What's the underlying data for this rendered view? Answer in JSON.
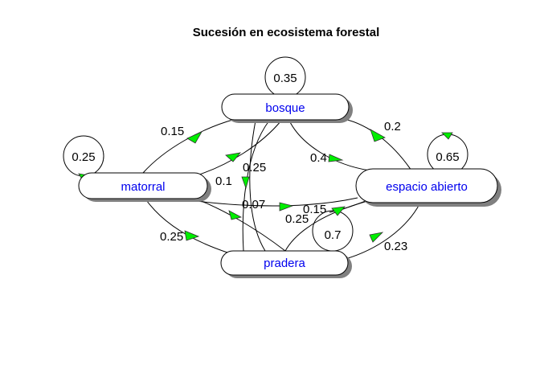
{
  "title": "Sucesión en ecosistema forestal",
  "colors": {
    "arrow_fill": "#00ee00",
    "node_label": "#0000ee",
    "edge": "#000000",
    "shadow": "#808080"
  },
  "nodes": [
    {
      "id": "bosque",
      "label": "bosque"
    },
    {
      "id": "matorral",
      "label": "matorral"
    },
    {
      "id": "espacio_abierto",
      "label": "espacio abierto"
    },
    {
      "id": "pradera",
      "label": "pradera"
    }
  ],
  "edges": [
    {
      "from": "bosque",
      "to": "bosque",
      "label": "0.35"
    },
    {
      "from": "matorral",
      "to": "bosque",
      "label": "0.15"
    },
    {
      "from": "espacio_abierto",
      "to": "bosque",
      "label": "0.2"
    },
    {
      "from": "bosque",
      "to": "espacio_abierto",
      "label": "0.4"
    },
    {
      "from": "bosque",
      "to": "matorral",
      "label": "0.1"
    },
    {
      "from": "bosque",
      "to": "pradera",
      "label": "0.25"
    },
    {
      "from": "matorral",
      "to": "matorral",
      "label": "0.25"
    },
    {
      "from": "espacio_abierto",
      "to": "espacio_abierto",
      "label": "0.65"
    },
    {
      "from": "matorral",
      "to": "espacio_abierto",
      "label": "0.07"
    },
    {
      "from": "espacio_abierto",
      "to": "matorral",
      "label": "0.15"
    },
    {
      "from": "pradera",
      "to": "espacio_abierto",
      "label": "0.25"
    },
    {
      "from": "pradera",
      "to": "pradera",
      "label": "0.7"
    },
    {
      "from": "matorral",
      "to": "pradera",
      "label": "0.25"
    },
    {
      "from": "espacio_abierto",
      "to": "pradera",
      "label": "0.23"
    }
  ]
}
